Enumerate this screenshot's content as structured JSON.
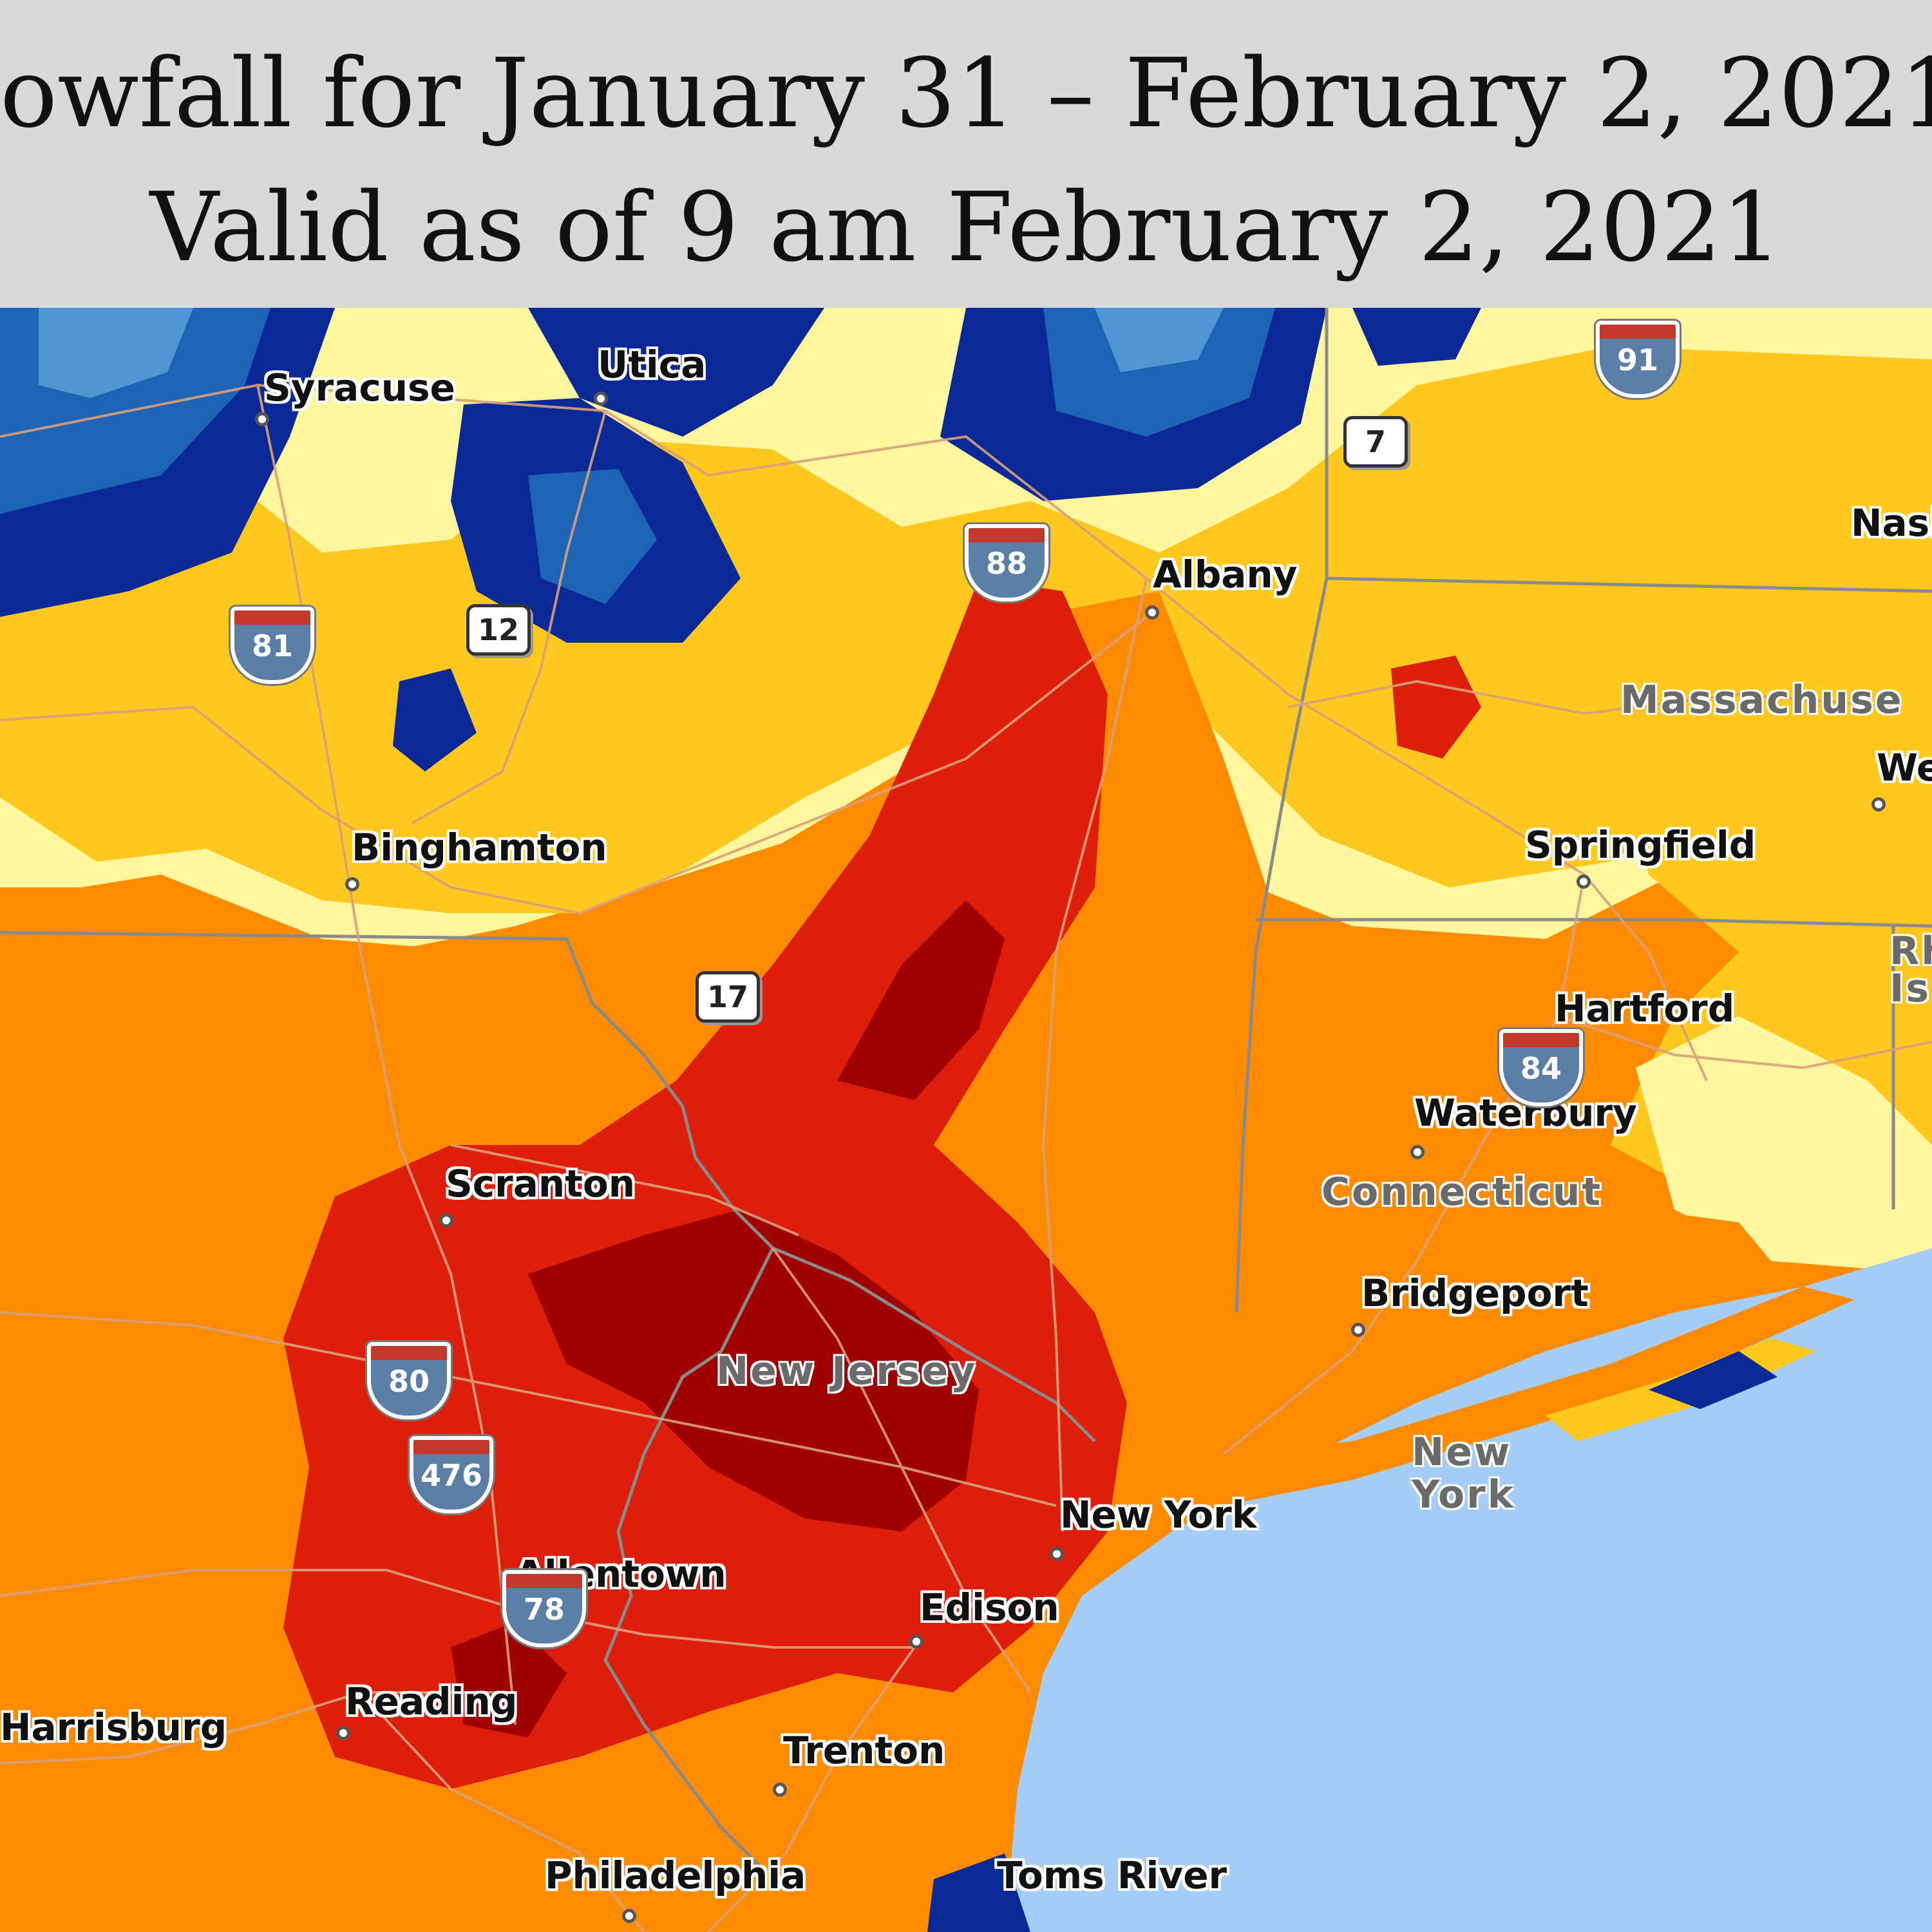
{
  "header": {
    "title_line_1": "owfall for January 31 – February 2, 2021",
    "title_line_2": "Valid as of 9 am February 2, 2021"
  },
  "colors": {
    "header_bg": "#d9d9d9",
    "ocean": "#a6cdf5",
    "land_base": "#ff8c00",
    "snow_bands": [
      "#fff7a0",
      "#ffc81e",
      "#ff8c00",
      "#dc1e0a",
      "#a00000",
      "#0a2896",
      "#1e64b4",
      "#5096d2"
    ]
  },
  "cities": [
    {
      "name": "Syracuse"
    },
    {
      "name": "Utica"
    },
    {
      "name": "Albany"
    },
    {
      "name": "Binghamton"
    },
    {
      "name": "Springfield"
    },
    {
      "name": "Hartford"
    },
    {
      "name": "Waterbury"
    },
    {
      "name": "Scranton"
    },
    {
      "name": "Bridgeport"
    },
    {
      "name": "New York"
    },
    {
      "name": "Allentown"
    },
    {
      "name": "Edison"
    },
    {
      "name": "Harrisburg"
    },
    {
      "name": "Reading"
    },
    {
      "name": "Trenton"
    },
    {
      "name": "Philadelphia"
    },
    {
      "name": "Toms River"
    },
    {
      "name": "Nash"
    },
    {
      "name": "We"
    }
  ],
  "states": [
    {
      "name": "Massachuse"
    },
    {
      "name": "Connecticut"
    },
    {
      "name": "New Jersey"
    },
    {
      "name": "New"
    },
    {
      "name": "York"
    },
    {
      "name": "Rh"
    },
    {
      "name": "Is"
    }
  ],
  "interstates": [
    "81",
    "88",
    "91",
    "84",
    "80",
    "476",
    "78"
  ],
  "routes": [
    "7",
    "12",
    "17"
  ]
}
